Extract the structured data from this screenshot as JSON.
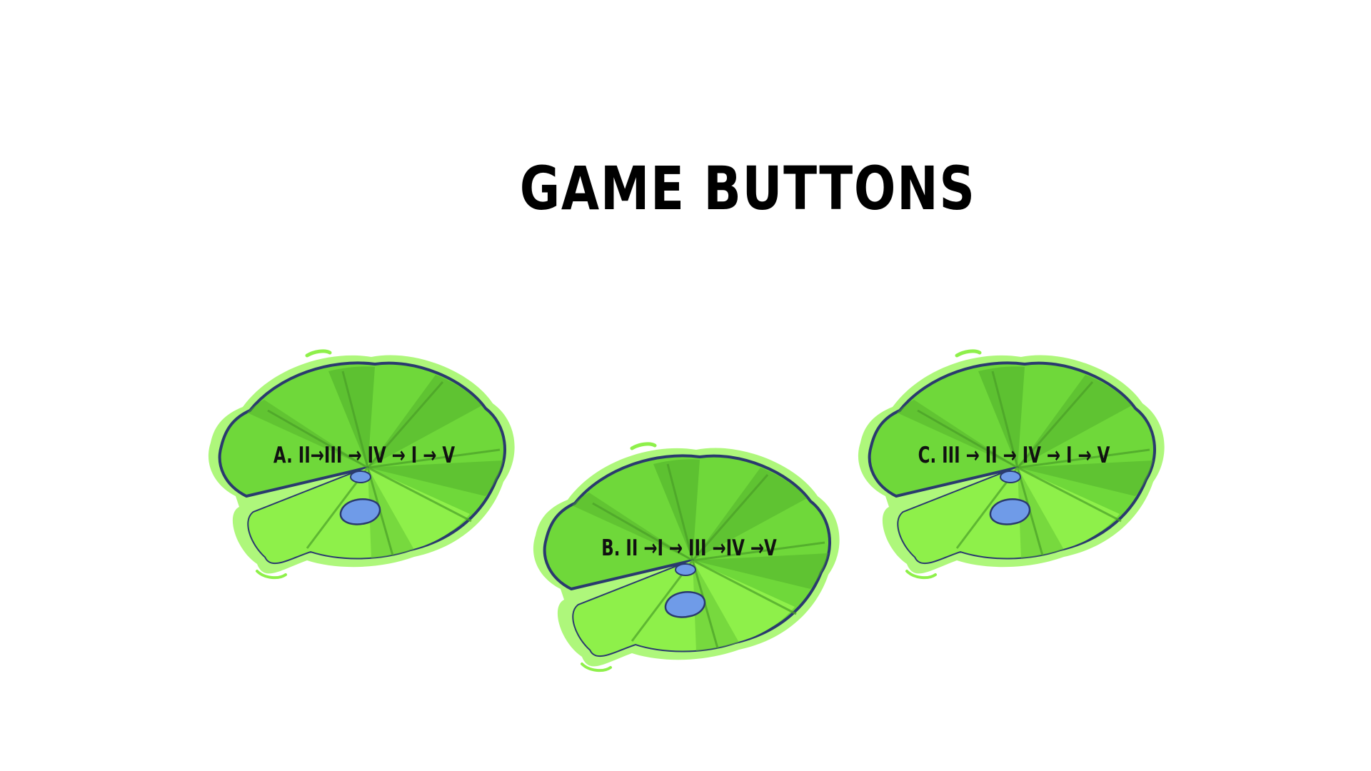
{
  "title": "GAME BUTTONS",
  "buttons": [
    {
      "label": "A. II→III → IV → I → V"
    },
    {
      "label": "B. II →I → III →IV →V"
    },
    {
      "label": "C. III → II → IV → I → V"
    }
  ],
  "colors": {
    "leaf_light": "#8ef04a",
    "leaf_mid": "#6fd83a",
    "leaf_dark": "#4fae2a",
    "outline": "#2a3a6e",
    "water": "#6f9be8"
  }
}
